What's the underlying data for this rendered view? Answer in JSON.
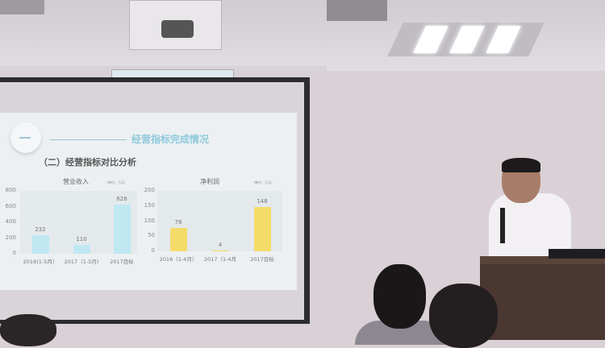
{
  "slide": {
    "section_number": "一",
    "title": "经营指标完成情况",
    "subtitle": "（二）经营指标对比分析"
  },
  "chart_data": [
    {
      "type": "bar",
      "title": "营业收入",
      "unit": "（单位：万元）",
      "categories": [
        "2016(1-5月）",
        "2017（1-5月)",
        "2017目标"
      ],
      "values": [
        232,
        110,
        628
      ],
      "ylim": [
        0,
        800
      ],
      "yticks": [
        0,
        200,
        400,
        600,
        800
      ],
      "color": "#bfe8f3"
    },
    {
      "type": "bar",
      "title": "净利润",
      "unit": "（单位：万元）",
      "categories": [
        "2016（1-4月）",
        "2017（1-4月",
        "2017目标"
      ],
      "values": [
        78,
        4,
        148
      ],
      "ylim": [
        0,
        200
      ],
      "yticks": [
        0,
        50,
        100,
        150,
        200
      ],
      "color": "#f4dc6a"
    }
  ]
}
